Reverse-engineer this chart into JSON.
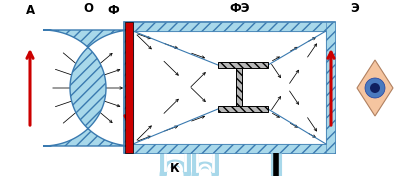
{
  "bg_color": "#ffffff",
  "light_blue": "#a8d8ea",
  "med_blue": "#5aafe0",
  "dark_blue": "#3a7ab0",
  "red": "#cc0000",
  "black": "#000000",
  "gray_screen": "#b8b8b8",
  "peach": "#f5c5a0",
  "eye_blue": "#4a7abf",
  "label_A": "А",
  "label_O": "О",
  "label_Phi": "Ф",
  "label_PhiE": "ФЭ",
  "label_E": "Э",
  "label_K": "К",
  "fig_w": 4.05,
  "fig_h": 1.76,
  "dpi": 100
}
